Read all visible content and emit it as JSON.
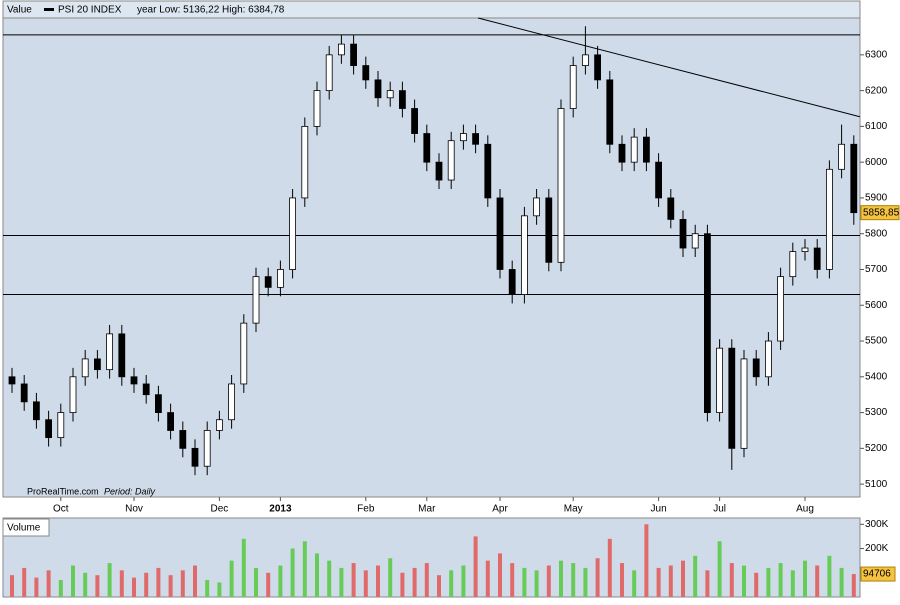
{
  "chart_data": {
    "type": "candlestick",
    "header_label": "Value",
    "title": "PSI 20 INDEX",
    "subtitle": "year Low: 5136,22 High: 6384,78",
    "source": "ProRealTime.com",
    "period": "Period: Daily",
    "categories": [
      null,
      null,
      null,
      null,
      "Oct",
      null,
      null,
      null,
      null,
      null,
      "Nov",
      null,
      null,
      null,
      null,
      null,
      null,
      "Dec",
      null,
      null,
      null,
      null,
      "2013",
      null,
      null,
      null,
      null,
      null,
      null,
      "Feb",
      null,
      null,
      null,
      null,
      "Mar",
      null,
      null,
      null,
      null,
      null,
      "Apr",
      null,
      null,
      null,
      null,
      null,
      "May",
      null,
      null,
      null,
      null,
      null,
      null,
      "Jun",
      null,
      null,
      null,
      null,
      "Jul",
      null,
      null,
      null,
      null,
      null,
      null,
      "Aug",
      null,
      null,
      null,
      null
    ],
    "open": [
      5400,
      5380,
      5330,
      5280,
      5230,
      5300,
      5400,
      5450,
      5420,
      5520,
      5400,
      5380,
      5350,
      5300,
      5250,
      5200,
      5150,
      5250,
      5280,
      5380,
      5550,
      5680,
      5650,
      5700,
      5900,
      6100,
      6200,
      6300,
      6330,
      6270,
      6230,
      6180,
      6200,
      6150,
      6080,
      6000,
      5950,
      6060,
      6080,
      6050,
      5900,
      5700,
      5630,
      5850,
      5900,
      5720,
      6150,
      6270,
      6300,
      6230,
      6050,
      6000,
      6070,
      6000,
      5900,
      5840,
      5760,
      5800,
      5300,
      5480,
      5200,
      5450,
      5400,
      5500,
      5680,
      5750,
      5760,
      5700,
      5980,
      6050
    ],
    "high": [
      5425,
      5405,
      5355,
      5305,
      5325,
      5425,
      5475,
      5475,
      5545,
      5545,
      5425,
      5405,
      5375,
      5325,
      5275,
      5225,
      5275,
      5305,
      5405,
      5575,
      5705,
      5705,
      5725,
      5925,
      6125,
      6225,
      6325,
      6355,
      6355,
      6295,
      6255,
      6225,
      6225,
      6175,
      6105,
      6025,
      6085,
      6105,
      6105,
      6075,
      5925,
      5725,
      5875,
      5925,
      5925,
      6175,
      6295,
      6380,
      6325,
      6255,
      6075,
      6095,
      6095,
      6025,
      5925,
      5865,
      5825,
      5825,
      5505,
      5505,
      5475,
      5475,
      5525,
      5705,
      5775,
      5785,
      5785,
      6005,
      6105,
      6075
    ],
    "low": [
      5355,
      5305,
      5255,
      5205,
      5205,
      5275,
      5375,
      5395,
      5395,
      5375,
      5355,
      5325,
      5275,
      5225,
      5175,
      5125,
      5125,
      5225,
      5255,
      5355,
      5525,
      5625,
      5625,
      5675,
      5875,
      6075,
      6175,
      6275,
      6245,
      6205,
      6155,
      6155,
      6125,
      6055,
      5975,
      5925,
      5925,
      6035,
      6025,
      5875,
      5675,
      5605,
      5605,
      5825,
      5695,
      5695,
      6125,
      6245,
      6205,
      6025,
      5975,
      5975,
      5975,
      5875,
      5815,
      5735,
      5735,
      5275,
      5275,
      5140,
      5175,
      5375,
      5375,
      5475,
      5655,
      5725,
      5675,
      5675,
      5955,
      5825
    ],
    "close": [
      5380,
      5330,
      5280,
      5230,
      5300,
      5400,
      5450,
      5420,
      5520,
      5400,
      5380,
      5350,
      5300,
      5250,
      5200,
      5150,
      5250,
      5280,
      5380,
      5550,
      5680,
      5650,
      5700,
      5900,
      6100,
      6200,
      6300,
      6330,
      6270,
      6230,
      6180,
      6200,
      6150,
      6080,
      6000,
      5950,
      6060,
      6080,
      6050,
      5900,
      5700,
      5630,
      5850,
      5900,
      5720,
      6150,
      6270,
      6300,
      6230,
      6050,
      6000,
      6070,
      6000,
      5900,
      5840,
      5760,
      5800,
      5300,
      5480,
      5200,
      5450,
      5400,
      5500,
      5680,
      5750,
      5760,
      5700,
      5980,
      6050,
      5858.85
    ],
    "last_price_label": "5858,85",
    "up_color": "#ffffff",
    "down_color": "#000000",
    "ylim": [
      5064,
      6403
    ],
    "yticks": [
      5100,
      5200,
      5300,
      5400,
      5500,
      5600,
      5700,
      5800,
      5900,
      6000,
      6100,
      6200,
      6300
    ],
    "levels": [
      6356,
      5795,
      5630
    ],
    "trendline": {
      "x": [
        38.2,
        69.5
      ],
      "y": [
        6403,
        6127
      ]
    },
    "background": "#cfdbe9",
    "volume": {
      "label": "Volume",
      "values": [
        90000,
        120000,
        80000,
        110000,
        70000,
        130000,
        100000,
        90000,
        140000,
        110000,
        80000,
        100000,
        120000,
        90000,
        110000,
        130000,
        70000,
        60000,
        150000,
        240000,
        120000,
        100000,
        130000,
        200000,
        230000,
        180000,
        150000,
        120000,
        140000,
        110000,
        130000,
        160000,
        100000,
        120000,
        140000,
        90000,
        110000,
        130000,
        250000,
        150000,
        180000,
        140000,
        120000,
        110000,
        130000,
        150000,
        140000,
        120000,
        160000,
        240000,
        140000,
        110000,
        300000,
        120000,
        130000,
        150000,
        170000,
        110000,
        230000,
        140000,
        130000,
        100000,
        120000,
        140000,
        110000,
        150000,
        130000,
        170000,
        120000,
        94706
      ],
      "up_color": "#66cc55",
      "down_color": "#e06a6a",
      "ylim": [
        0,
        326000
      ],
      "yticks": [
        {
          "value": 300000,
          "label": "300K"
        },
        {
          "value": 200000,
          "label": "200K"
        }
      ]
    }
  }
}
